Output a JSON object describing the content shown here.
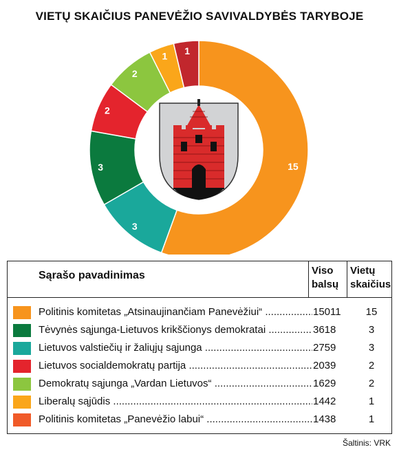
{
  "title": "VIETŲ SKAIČIUS PANEVĖŽIO SAVIVALDYBĖS TARYBOJE",
  "chart_data": {
    "type": "pie",
    "title": "VIETŲ SKAIČIUS PANEVĖŽIO SAVIVALDYBĖS TARYBOJE",
    "slices": [
      {
        "label": "Politinis komitetas „Atsinaujinančiam Panevėžiui“",
        "value": 15,
        "color": "#f7941d"
      },
      {
        "label": "Tėvynės sąjunga-Lietuvos krikščionys demokratai",
        "value": 3,
        "color": "#1aa89b"
      },
      {
        "label": "Lietuvos valstiečių ir žaliųjų sąjunga",
        "value": 3,
        "color": "#0b7a3e"
      },
      {
        "label": "Lietuvos socialdemokratų partija",
        "value": 2,
        "color": "#e4242d"
      },
      {
        "label": "Demokratų sąjunga „Vardan Lietuvos“",
        "value": 2,
        "color": "#8cc63f"
      },
      {
        "label": "Liberalų sąjūdis",
        "value": 1,
        "color": "#faa61a"
      },
      {
        "label": "Politinis komitetas „Panevėžio labui“",
        "value": 1,
        "color": "#c1272d"
      }
    ]
  },
  "legend": {
    "header_name": "Sąrašo pavadinimas",
    "header_votes_1": "Viso",
    "header_votes_2": "balsų",
    "header_seats_1": "Vietų",
    "header_seats_2": "skaičius",
    "rows": [
      {
        "name": "Politinis komitetas „Atsinaujinančiam Panevėžiui“",
        "votes": "15011",
        "seats": "15",
        "color": "#f7941d"
      },
      {
        "name": "Tėvynės sąjunga-Lietuvos krikščionys demokratai",
        "votes": "3618",
        "seats": "3",
        "color": "#0b7a3e"
      },
      {
        "name": "Lietuvos valstiečių ir žaliųjų sąjunga",
        "votes": "2759",
        "seats": "3",
        "color": "#1aa89b"
      },
      {
        "name": "Lietuvos socialdemokratų partija",
        "votes": "2039",
        "seats": "2",
        "color": "#e4242d"
      },
      {
        "name": "Demokratų sąjunga „Vardan Lietuvos“",
        "votes": "1629",
        "seats": "2",
        "color": "#8cc63f"
      },
      {
        "name": "Liberalų sąjūdis",
        "votes": "1442",
        "seats": "1",
        "color": "#faa61a"
      },
      {
        "name": "Politinis komitetas „Panevėžio labui“",
        "votes": "1438",
        "seats": "1",
        "color": "#f05a28"
      }
    ]
  },
  "source": "Šaltinis: VRK",
  "emblem": "panevezys-coat-of-arms-icon"
}
